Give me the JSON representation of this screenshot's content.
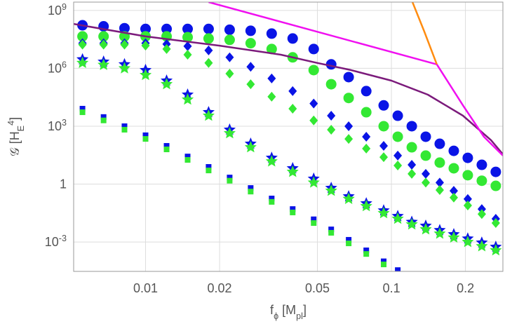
{
  "chart_data": {
    "type": "scatter",
    "xlabel": "f_{ϕ} [M_{pl}]",
    "ylabel": "𝒢 [H_{E}^{4}]",
    "xscale": "log",
    "yscale": "log",
    "grid": true,
    "xlim": [
      0.0051,
      0.284
    ],
    "ylim": [
      3e-05,
      2700000000.0
    ],
    "xticks": [
      0.01,
      0.02,
      0.05,
      0.1,
      0.2
    ],
    "yticks": [
      {
        "value": 0.001,
        "label": "10^{-3}"
      },
      1,
      {
        "value": 1000,
        "label": "10^{3}"
      },
      {
        "value": 1000000,
        "label": "10^{6}"
      },
      {
        "value": 1000000000,
        "label": "10^{9}"
      }
    ],
    "x": [
      0.00554,
      0.00675,
      0.00821,
      0.01,
      0.01218,
      0.01483,
      0.01805,
      0.02198,
      0.02676,
      0.03258,
      0.03966,
      0.04829,
      0.05689,
      0.067,
      0.079,
      0.093,
      0.1061,
      0.121,
      0.1379,
      0.1572,
      0.1793,
      0.2044,
      0.2331,
      0.2657
    ],
    "series": [
      {
        "mode": "markers",
        "marker": "circle",
        "color": "#0a14e6",
        "values": [
          170000000.0,
          150000000.0,
          120000000.0,
          110000000.0,
          110000000.0,
          110000000.0,
          110000000.0,
          100000000.0,
          88000000.0,
          63000000.0,
          35000000.0,
          10000000.0,
          1600000.0,
          350000.0,
          66000.0,
          12000.0,
          3500,
          1000,
          285,
          123,
          53,
          23,
          10,
          4.3
        ]
      },
      {
        "mode": "markers",
        "marker": "circle",
        "color": "#33e833",
        "values": [
          45000000.0,
          45000000.0,
          45000000.0,
          45000000.0,
          45000000.0,
          41000000.0,
          35000000.0,
          30000000.0,
          20000000.0,
          10000000.0,
          3700000.0,
          810000.0,
          150000.0,
          29000.0,
          5300,
          1000,
          285,
          81,
          30,
          13,
          6.6,
          2.9,
          1.5,
          0.81
        ]
      },
      {
        "mode": "markers",
        "marker": "diamond",
        "color": "#0a14e6",
        "values": [
          20000000.0,
          20000000.0,
          20000000.0,
          20000000.0,
          18000000.0,
          14000000.0,
          8500000.0,
          3700000.0,
          1200000.0,
          300000.0,
          66000.0,
          15000.0,
          3500,
          1000,
          285,
          96,
          30,
          10,
          3.4,
          1.2,
          0.45,
          0.17,
          0.051,
          0.016
        ]
      },
      {
        "mode": "markers",
        "marker": "diamond",
        "color": "#33e833",
        "values": [
          17000000.0,
          17000000.0,
          17000000.0,
          15000000.0,
          10000000.0,
          5100000.0,
          1900000.0,
          530000.0,
          150000.0,
          34000.0,
          8100,
          2000,
          660,
          220,
          69,
          25,
          9.2,
          3.4,
          1.2,
          0.49,
          0.2,
          0.078,
          0.028,
          0.0096
        ]
      },
      {
        "mode": "markers",
        "marker": "star",
        "color": "#0a14e6",
        "values": [
          2900000.0,
          2200000.0,
          1600000.0,
          810000.0,
          230000.0,
          43000.0,
          5300,
          660,
          123,
          23,
          6.6,
          1.9,
          0.63,
          0.23,
          0.1,
          0.043,
          0.022,
          0.011,
          0.0069,
          0.0041,
          0.0025,
          0.0015,
          0.00092,
          0.00056
        ]
      },
      {
        "mode": "markers",
        "marker": "star",
        "color": "#33e833",
        "values": [
          1900000.0,
          1500000.0,
          1000000.0,
          450000.0,
          150000.0,
          24000.0,
          3500,
          430,
          81,
          15,
          4.3,
          1.2,
          0.45,
          0.17,
          0.072,
          0.031,
          0.016,
          0.0081,
          0.0045,
          0.0027,
          0.0017,
          0.001,
          0.0006,
          0.00037
        ]
      },
      {
        "mode": "markers",
        "marker": "square",
        "color": "#0a14e6",
        "values": [
          8100,
          3000,
          1000,
          340,
          96,
          27,
          7.8,
          2.2,
          0.63,
          0.18,
          0.051,
          0.015,
          0.0045,
          0.0013,
          0.00037,
          0.0001,
          3.5e-05,
          null,
          null,
          null,
          null,
          null,
          null,
          null
        ]
      },
      {
        "mode": "markers",
        "marker": "square",
        "color": "#33e833",
        "values": [
          5300,
          2000,
          660,
          220,
          63,
          18,
          5.1,
          1.5,
          0.41,
          0.12,
          0.034,
          0.0096,
          0.003,
          0.00085,
          0.00024,
          6.9e-05,
          null,
          null,
          null,
          null,
          null,
          null,
          null,
          null
        ]
      },
      {
        "mode": "line",
        "color": "#7b1a7b",
        "x": [
          0.0051,
          0.01,
          0.02,
          0.0355,
          0.05,
          0.0684,
          0.1,
          0.1406,
          0.1955,
          0.254,
          0.284
        ],
        "values": [
          200000000.0,
          45000000.0,
          15000000.0,
          5100000.0,
          1900000.0,
          810000.0,
          230000.0,
          43000.0,
          3500,
          190,
          35
        ]
      },
      {
        "mode": "line",
        "color": "#f010f0",
        "x": [
          0.01805,
          0.153,
          0.1955,
          0.2377,
          0.284
        ],
        "values": [
          2700000000.0,
          1600000.0,
          12000.0,
          285,
          30
        ]
      },
      {
        "mode": "line",
        "color": "#ff8c10",
        "x": [
          0.1218,
          0.136,
          0.153
        ],
        "values": [
          2700000000.0,
          81000000.0,
          1600000.0
        ]
      }
    ]
  }
}
